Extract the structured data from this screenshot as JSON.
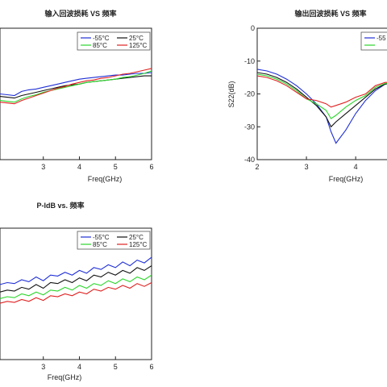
{
  "chart_data": [
    {
      "type": "line",
      "title": "输入回波损耗 VS 频率",
      "xlabel": "Freq(GHz)",
      "ylabel": "",
      "xlim": [
        1.8,
        6
      ],
      "x_ticks": [
        3,
        4,
        5,
        6
      ],
      "grid": false,
      "legend": "top-right",
      "x": [
        1.8,
        2.0,
        2.2,
        2.4,
        2.6,
        2.8,
        3.0,
        3.2,
        3.4,
        3.6,
        3.8,
        4.0,
        4.2,
        4.4,
        4.6,
        4.8,
        5.0,
        5.2,
        5.4,
        5.6,
        5.8,
        6.0
      ],
      "series": [
        {
          "name": "-55°C",
          "color": "#1f2fd6",
          "values": [
            0.0,
            -0.1,
            -0.2,
            0.3,
            0.5,
            0.6,
            0.8,
            1.0,
            1.2,
            1.4,
            1.6,
            1.8,
            1.9,
            2.0,
            2.1,
            2.2,
            2.3,
            2.3,
            2.4,
            2.5,
            2.5,
            2.6
          ]
        },
        {
          "name": "25°C",
          "color": "#111111",
          "values": [
            -0.3,
            -0.4,
            -0.5,
            -0.2,
            0.0,
            0.2,
            0.4,
            0.6,
            0.8,
            1.0,
            1.1,
            1.2,
            1.4,
            1.5,
            1.6,
            1.7,
            1.8,
            1.9,
            2.0,
            2.1,
            2.2,
            2.2
          ]
        },
        {
          "name": "85°C",
          "color": "#2bd62b",
          "values": [
            -0.8,
            -0.9,
            -1.0,
            -0.6,
            -0.3,
            -0.1,
            0.2,
            0.4,
            0.6,
            0.8,
            1.0,
            1.2,
            1.4,
            1.5,
            1.6,
            1.7,
            1.8,
            2.0,
            2.1,
            2.3,
            2.5,
            2.8
          ]
        },
        {
          "name": "125°C",
          "color": "#e02020",
          "values": [
            -1.0,
            -1.1,
            -1.2,
            -0.8,
            -0.5,
            -0.2,
            0.1,
            0.4,
            0.7,
            0.9,
            1.2,
            1.4,
            1.6,
            1.7,
            1.9,
            2.0,
            2.2,
            2.4,
            2.5,
            2.7,
            2.9,
            3.1
          ]
        }
      ]
    },
    {
      "type": "line",
      "title": "输出回波损耗 VS 频率",
      "xlabel": "Freq(GHz)",
      "ylabel": "S22(dB)",
      "xlim": [
        2,
        4.8
      ],
      "ylim": [
        -40,
        0
      ],
      "x_ticks": [
        2,
        3,
        4
      ],
      "y_ticks": [
        0,
        -10,
        -20,
        -30,
        -40
      ],
      "grid": false,
      "legend": "top-right",
      "x": [
        2.0,
        2.2,
        2.4,
        2.6,
        2.8,
        3.0,
        3.2,
        3.4,
        3.5,
        3.6,
        3.8,
        4.0,
        4.2,
        4.4,
        4.6,
        4.8
      ],
      "series": [
        {
          "name": "-55",
          "color": "#1f2fd6",
          "values": [
            -12.5,
            -13.0,
            -14.0,
            -15.5,
            -17.5,
            -20.0,
            -23.0,
            -27.0,
            -31.5,
            -35.0,
            -31.0,
            -26.0,
            -22.0,
            -19.0,
            -17.0,
            -16.5
          ]
        },
        {
          "name": "",
          "color": "#111111",
          "values": [
            -13.5,
            -14.0,
            -15.0,
            -16.5,
            -18.5,
            -21.0,
            -23.5,
            -27.0,
            -30.0,
            -28.5,
            -26.0,
            -23.5,
            -21.0,
            -18.5,
            -17.0,
            -16.5
          ]
        },
        {
          "name": "",
          "color": "#2bd62b",
          "values": [
            -14.0,
            -14.5,
            -15.5,
            -17.0,
            -19.0,
            -21.5,
            -23.0,
            -25.0,
            -27.5,
            -26.5,
            -24.0,
            -22.0,
            -20.5,
            -18.0,
            -16.8,
            -16.5
          ]
        },
        {
          "name": "",
          "color": "#e02020",
          "values": [
            -14.5,
            -15.0,
            -16.0,
            -17.5,
            -19.5,
            -21.5,
            -22.0,
            -23.0,
            -24.0,
            -23.5,
            -22.5,
            -21.0,
            -20.0,
            -17.5,
            -16.5,
            -16.5
          ]
        }
      ]
    },
    {
      "type": "line",
      "title": "P-ldB vs. 频率",
      "xlabel": "Freq(GHz)",
      "ylabel": "",
      "xlim": [
        1.8,
        6
      ],
      "x_ticks": [
        3,
        4,
        5,
        6
      ],
      "grid": false,
      "legend": "top-right",
      "x": [
        1.8,
        2.0,
        2.2,
        2.4,
        2.6,
        2.8,
        3.0,
        3.2,
        3.4,
        3.6,
        3.8,
        4.0,
        4.2,
        4.4,
        4.6,
        4.8,
        5.0,
        5.2,
        5.4,
        5.6,
        5.8,
        6.0
      ],
      "series": [
        {
          "name": "-55°C",
          "color": "#1f2fd6",
          "values": [
            6.0,
            6.2,
            6.1,
            6.5,
            6.3,
            6.8,
            6.4,
            7.0,
            6.9,
            7.3,
            7.0,
            7.5,
            7.2,
            7.8,
            7.6,
            8.1,
            7.8,
            8.4,
            8.0,
            8.6,
            8.3,
            8.9
          ]
        },
        {
          "name": "25°C",
          "color": "#111111",
          "values": [
            5.2,
            5.4,
            5.3,
            5.7,
            5.5,
            6.0,
            5.6,
            6.2,
            6.1,
            6.5,
            6.2,
            6.7,
            6.4,
            7.0,
            6.8,
            7.3,
            7.0,
            7.5,
            7.2,
            7.8,
            7.5,
            8.0
          ]
        },
        {
          "name": "85°C",
          "color": "#2bd62b",
          "values": [
            4.5,
            4.7,
            4.6,
            5.0,
            4.8,
            5.2,
            4.9,
            5.4,
            5.3,
            5.7,
            5.4,
            5.9,
            5.6,
            6.1,
            5.9,
            6.4,
            6.1,
            6.6,
            6.3,
            6.8,
            6.5,
            7.0
          ]
        },
        {
          "name": "125°C",
          "color": "#e02020",
          "values": [
            4.0,
            4.2,
            4.1,
            4.4,
            4.2,
            4.6,
            4.3,
            4.8,
            4.7,
            5.0,
            4.8,
            5.2,
            5.0,
            5.5,
            5.3,
            5.7,
            5.5,
            5.9,
            5.6,
            6.1,
            5.8,
            6.2
          ]
        }
      ]
    }
  ]
}
